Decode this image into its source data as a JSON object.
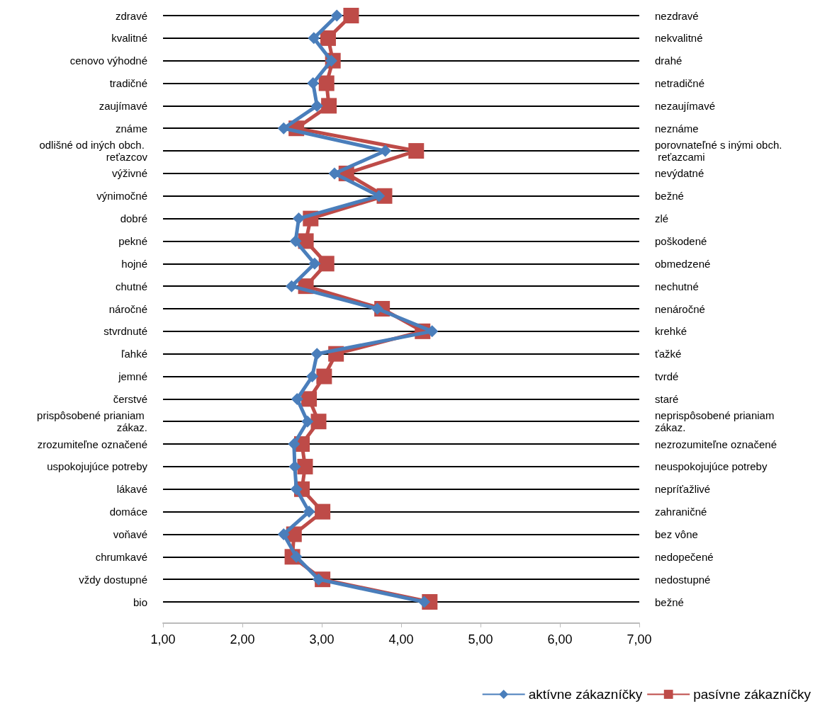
{
  "chart_data": {
    "type": "line",
    "orientation": "horizontal",
    "categories": [
      "zdravé",
      "kvalitné",
      "cenovo výhodné",
      "tradičné",
      "zaujímavé",
      "známe",
      "odlišné od iných obch. reťazcov",
      "výživné",
      "výnimočné",
      "dobré",
      "pekné",
      "hojné",
      "chutné",
      "náročné",
      "stvrdnuté",
      "ľahké",
      "jemné",
      "čerstvé",
      "prispôsobené prianiam zákaz.",
      "zrozumiteľne označené",
      "uspokojujúce potreby",
      "lákavé",
      "domáce",
      "voňavé",
      "chrumkavé",
      "vždy dostupné",
      "bio"
    ],
    "y2_categories": [
      "nezdravé",
      "nekvalitné",
      "drahé",
      "netradičné",
      "nezaujímavé",
      "neznáme",
      "porovnateľné s inými obch. reťazcami",
      "nevýdatné",
      "bežné",
      "zlé",
      "poškodené",
      "obmedzené",
      "nechutné",
      "nenáročné",
      "krehké",
      "ťažké",
      "tvrdé",
      "staré",
      "neprispôsobené prianiam zákaz.",
      "nezrozumiteľne označené",
      "neuspokojujúce potreby",
      "nepríťažlivé",
      "zahraničné",
      "bez vône",
      "nedopečené",
      "nedostupné",
      "bežné"
    ],
    "series": [
      {
        "name": "aktívne zákazníčky",
        "color": "#4a7ebb",
        "marker": "diamond",
        "values": [
          3.19,
          2.9,
          3.12,
          2.89,
          2.94,
          2.52,
          3.8,
          3.16,
          3.72,
          2.71,
          2.67,
          2.91,
          2.62,
          3.7,
          4.39,
          2.94,
          2.88,
          2.69,
          2.82,
          2.65,
          2.66,
          2.68,
          2.84,
          2.52,
          2.68,
          2.96,
          4.29
        ]
      },
      {
        "name": "pasívne zákazníčky",
        "color": "#be4b48",
        "marker": "square",
        "values": [
          3.37,
          3.08,
          3.14,
          3.06,
          3.09,
          2.68,
          4.19,
          3.31,
          3.79,
          2.86,
          2.8,
          3.06,
          2.8,
          3.76,
          4.27,
          3.18,
          3.03,
          2.84,
          2.96,
          2.75,
          2.79,
          2.75,
          3.01,
          2.65,
          2.63,
          3.01,
          4.36
        ]
      }
    ],
    "xlim": [
      1,
      7
    ],
    "xticks": [
      {
        "value": 1,
        "label": "1,00"
      },
      {
        "value": 2,
        "label": "2,00"
      },
      {
        "value": 3,
        "label": "3,00"
      },
      {
        "value": 4,
        "label": "4,00"
      },
      {
        "value": 5,
        "label": "5,00"
      },
      {
        "value": 6,
        "label": "6,00"
      },
      {
        "value": 7,
        "label": "7,00"
      }
    ],
    "grid": "y",
    "legend": "bottom right"
  }
}
